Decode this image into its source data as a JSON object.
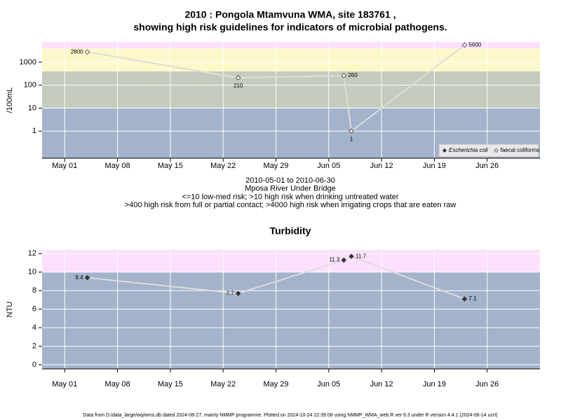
{
  "chart_data": [
    {
      "type": "line",
      "title": [
        "2010 : Pongola Mtamvuna WMA, site 183761 ,",
        "showing high risk guidelines for indicators of microbial pathogens."
      ],
      "ylabel": "/100mL",
      "notes": [
        "2010-05-01 to 2010-06-30",
        "Mposa River Under Bridge",
        "<=10 low-med risk; >10 high risk when drinking untreated water",
        ">400 high risk from full or partial contact; >4000 high risk when irrigating crops that are eaten raw"
      ],
      "log_y": true,
      "x": [
        "2010-05-04",
        "2010-05-24",
        "2010-06-07",
        "2010-06-08",
        "2010-06-23"
      ],
      "series": [
        {
          "name": "Escherichia coli",
          "color": "#333333",
          "marker": "filled",
          "values": [
            null,
            null,
            null,
            null,
            null
          ]
        },
        {
          "name": "faecal coliforms",
          "color": "#333333",
          "marker": "open",
          "values": [
            2800,
            210,
            260,
            1,
            5600
          ]
        }
      ],
      "xlim": [
        "2010-04-28",
        "2010-07-03"
      ],
      "xticks": [
        {
          "value": "2010-05-01",
          "label": "May 01"
        },
        {
          "value": "2010-05-08",
          "label": "May 08"
        },
        {
          "value": "2010-05-15",
          "label": "May 15"
        },
        {
          "value": "2010-05-22",
          "label": "May 22"
        },
        {
          "value": "2010-05-29",
          "label": "May 29"
        },
        {
          "value": "2010-06-05",
          "label": "Jun 05"
        },
        {
          "value": "2010-06-12",
          "label": "Jun 12"
        },
        {
          "value": "2010-06-19",
          "label": "Jun 19"
        },
        {
          "value": "2010-06-26",
          "label": "Jun 26"
        }
      ],
      "ylim": [
        0.066,
        7600
      ],
      "yticks": [
        1,
        10,
        100,
        1000
      ],
      "thresholds": [
        10,
        400,
        4000
      ],
      "band_colors": [
        "#a3b3cb",
        "#c5cbbe",
        "#fdf8c9",
        "#fde0fd"
      ],
      "grid": true,
      "legend": "bottom-right"
    },
    {
      "type": "line",
      "title": [
        "Turbidity"
      ],
      "ylabel": "NTU",
      "log_y": false,
      "x": [
        "2010-05-04",
        "2010-05-24",
        "2010-06-07",
        "2010-06-08",
        "2010-06-23"
      ],
      "series": [
        {
          "name": "Turbidity",
          "color": "#333333",
          "marker": "filled",
          "values": [
            9.4,
            7.7,
            11.3,
            11.7,
            7.1
          ]
        }
      ],
      "xlim": [
        "2010-04-28",
        "2010-07-03"
      ],
      "xticks": [
        {
          "value": "2010-05-01",
          "label": "May 01"
        },
        {
          "value": "2010-05-08",
          "label": "May 08"
        },
        {
          "value": "2010-05-15",
          "label": "May 15"
        },
        {
          "value": "2010-05-22",
          "label": "May 22"
        },
        {
          "value": "2010-05-29",
          "label": "May 29"
        },
        {
          "value": "2010-06-05",
          "label": "Jun 05"
        },
        {
          "value": "2010-06-12",
          "label": "Jun 12"
        },
        {
          "value": "2010-06-19",
          "label": "Jun 19"
        },
        {
          "value": "2010-06-26",
          "label": "Jun 26"
        }
      ],
      "ylim": [
        -0.45,
        12.4
      ],
      "yticks": [
        0,
        2,
        4,
        6,
        8,
        10,
        12
      ],
      "thresholds": [
        10
      ],
      "band_colors": [
        "#a3b3cb",
        "#fde0fd"
      ],
      "grid": true
    }
  ],
  "footer": "Data from D:/data_large/wq/wms.db dated 2024-08-27, mainly NMMP programme. Plotted on 2024-10-24 22:39:08 using NMMP_WMA_web.R ver 9.3 under R version 4.4.1 (2024-06-14 ucrt)"
}
